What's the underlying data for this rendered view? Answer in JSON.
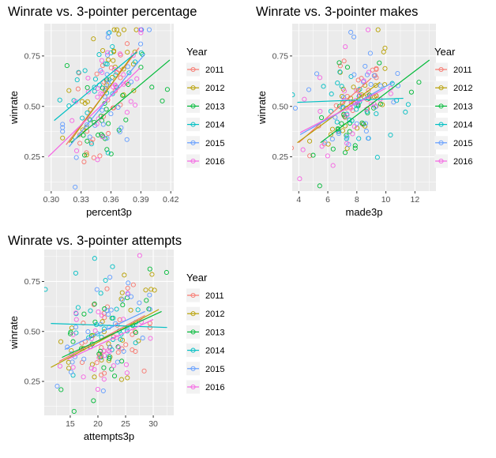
{
  "colors": {
    "2011": "#F8766D",
    "2012": "#B79F00",
    "2013": "#00BA38",
    "2014": "#00BFC4",
    "2015": "#619CFF",
    "2016": "#F564E3",
    "panel_bg": "#EBEBEB",
    "grid": "#FFFFFF",
    "axis_text": "#4D4D4D"
  },
  "legend": {
    "title": "Year",
    "items": [
      "2011",
      "2012",
      "2013",
      "2014",
      "2015",
      "2016"
    ]
  },
  "chart_data": [
    {
      "type": "scatter",
      "title": "Winrate vs. 3-pointer percentage",
      "xlabel": "percent3p",
      "ylabel": "winrate",
      "xlim": [
        0.293,
        0.423
      ],
      "ylim": [
        0.08,
        0.91
      ],
      "xticks": [
        0.3,
        0.33,
        0.36,
        0.39,
        0.42
      ],
      "xtick_labels": [
        "0.30",
        "0.33",
        "0.36",
        "0.39",
        "0.42"
      ],
      "yticks": [
        0.25,
        0.5,
        0.75
      ],
      "ytick_labels": [
        "0.25",
        "0.50",
        "0.75"
      ],
      "grid": true,
      "legend_position": "right",
      "x_center": 0.355,
      "x_spread": 0.022,
      "fits": [
        {
          "name": "2011",
          "x": [
            0.315,
            0.388
          ],
          "y": [
            0.31,
            0.79
          ]
        },
        {
          "name": "2012",
          "x": [
            0.318,
            0.381
          ],
          "y": [
            0.32,
            0.75
          ]
        },
        {
          "name": "2013",
          "x": [
            0.32,
            0.419
          ],
          "y": [
            0.32,
            0.73
          ]
        },
        {
          "name": "2014",
          "x": [
            0.303,
            0.386
          ],
          "y": [
            0.43,
            0.77
          ]
        },
        {
          "name": "2015",
          "x": [
            0.318,
            0.394
          ],
          "y": [
            0.3,
            0.76
          ]
        },
        {
          "name": "2016",
          "x": [
            0.297,
            0.389
          ],
          "y": [
            0.25,
            0.69
          ]
        }
      ]
    },
    {
      "type": "scatter",
      "title": "Winrate vs. 3-pointer makes",
      "xlabel": "made3p",
      "ylabel": "winrate",
      "xlim": [
        3.55,
        13.45
      ],
      "ylim": [
        0.08,
        0.91
      ],
      "xticks": [
        4,
        6,
        8,
        10,
        12
      ],
      "xtick_labels": [
        "4",
        "6",
        "8",
        "10",
        "12"
      ],
      "yticks": [
        0.25,
        0.5,
        0.75
      ],
      "ytick_labels": [
        "0.25",
        "0.50",
        "0.75"
      ],
      "grid": true,
      "legend_position": "right",
      "x_center": 7.9,
      "x_spread": 1.7,
      "fits": [
        {
          "name": "2011",
          "x": [
            4.0,
            9.0
          ],
          "y": [
            0.32,
            0.64
          ]
        },
        {
          "name": "2012",
          "x": [
            3.9,
            9.6
          ],
          "y": [
            0.32,
            0.62
          ]
        },
        {
          "name": "2013",
          "x": [
            5.5,
            13.0
          ],
          "y": [
            0.32,
            0.73
          ]
        },
        {
          "name": "2014",
          "x": [
            3.9,
            11.2
          ],
          "y": [
            0.52,
            0.54
          ]
        },
        {
          "name": "2015",
          "x": [
            4.1,
            10.5
          ],
          "y": [
            0.36,
            0.62
          ]
        },
        {
          "name": "2016",
          "x": [
            4.1,
            10.0
          ],
          "y": [
            0.37,
            0.59
          ]
        }
      ]
    },
    {
      "type": "scatter",
      "title": "Winrate vs. 3-pointer attempts",
      "xlabel": "attempts3p",
      "ylabel": "winrate",
      "xlim": [
        10.3,
        33.7
      ],
      "ylim": [
        0.08,
        0.91
      ],
      "xticks": [
        15,
        20,
        25,
        30
      ],
      "xtick_labels": [
        "15",
        "20",
        "25",
        "30"
      ],
      "yticks": [
        0.25,
        0.5,
        0.75
      ],
      "ytick_labels": [
        "0.25",
        "0.50",
        "0.75"
      ],
      "grid": true,
      "legend_position": "right",
      "x_center": 21.5,
      "x_spread": 4.5,
      "fits": [
        {
          "name": "2011",
          "x": [
            13.0,
            28.5
          ],
          "y": [
            0.35,
            0.58
          ]
        },
        {
          "name": "2012",
          "x": [
            11.5,
            31.0
          ],
          "y": [
            0.32,
            0.61
          ]
        },
        {
          "name": "2013",
          "x": [
            13.5,
            31.5
          ],
          "y": [
            0.37,
            0.6
          ]
        },
        {
          "name": "2014",
          "x": [
            11.5,
            32.5
          ],
          "y": [
            0.54,
            0.52
          ]
        },
        {
          "name": "2015",
          "x": [
            14.0,
            28.5
          ],
          "y": [
            0.41,
            0.6
          ]
        },
        {
          "name": "2016",
          "x": [
            14.5,
            30.0
          ],
          "y": [
            0.36,
            0.56
          ]
        }
      ]
    }
  ]
}
